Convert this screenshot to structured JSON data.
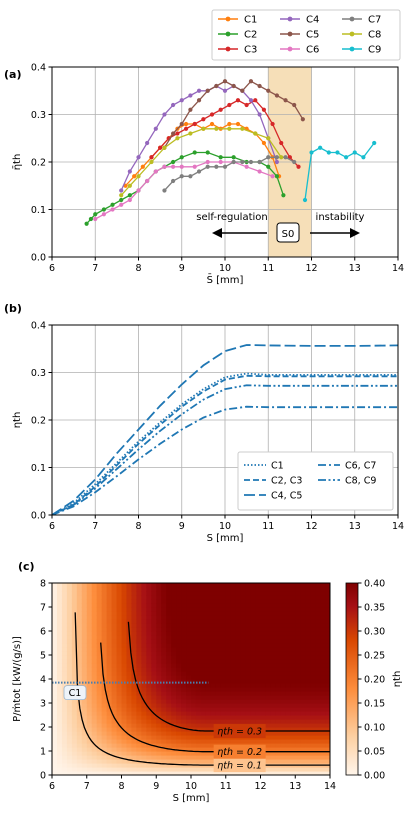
{
  "legend": {
    "entries": [
      {
        "name": "C1",
        "color": "#ff7f0e"
      },
      {
        "name": "C2",
        "color": "#2ca02c"
      },
      {
        "name": "C3",
        "color": "#d62728"
      },
      {
        "name": "C4",
        "color": "#9467bd"
      },
      {
        "name": "C5",
        "color": "#8c564b"
      },
      {
        "name": "C6",
        "color": "#e377c2"
      },
      {
        "name": "C7",
        "color": "#7f7f7f"
      },
      {
        "name": "C8",
        "color": "#bcbd22"
      },
      {
        "name": "C9",
        "color": "#17becf"
      }
    ]
  },
  "chart_data": [
    {
      "panel": "(a)",
      "type": "line",
      "xlabel": "S̄ [mm]",
      "ylabel": "η̄th",
      "xlim": [
        6,
        14
      ],
      "ylim": [
        0.0,
        0.4
      ],
      "xticks": [
        "6",
        "7",
        "8",
        "9",
        "10",
        "11",
        "12",
        "13",
        "14"
      ],
      "yticks": [
        "0.0",
        "0.1",
        "0.2",
        "0.3",
        "0.4"
      ],
      "grid": true,
      "legend_position": "top-right, above plot",
      "shaded_region": {
        "x": [
          11,
          12
        ],
        "label": "S0",
        "color": "#f6dfb8"
      },
      "annotations": [
        {
          "text": "self-regulation",
          "arrow": "left",
          "x_from": 11,
          "x_to": 8.6,
          "y": 0.055
        },
        {
          "text": "instability",
          "arrow": "right",
          "x_from": 12,
          "x_to": 13.2,
          "y": 0.055
        }
      ],
      "series": [
        {
          "name": "C1",
          "color": "#ff7f0e",
          "x": [
            7.7,
            7.9,
            8.1,
            8.3,
            8.5,
            8.7,
            8.9,
            9.1,
            9.3,
            9.5,
            9.7,
            9.9,
            10.1,
            10.3,
            10.5,
            10.7,
            10.9,
            11.1,
            11.25
          ],
          "y": [
            0.15,
            0.17,
            0.19,
            0.21,
            0.23,
            0.25,
            0.27,
            0.28,
            0.28,
            0.27,
            0.28,
            0.27,
            0.28,
            0.28,
            0.27,
            0.26,
            0.24,
            0.21,
            0.17
          ]
        },
        {
          "name": "C2",
          "color": "#2ca02c",
          "x": [
            6.8,
            6.9,
            7.0,
            7.2,
            7.4,
            7.6,
            7.8,
            8.0,
            8.2,
            8.4,
            8.6,
            8.8,
            9.0,
            9.3,
            9.6,
            9.9,
            10.2,
            10.5,
            10.8,
            11.0,
            11.2,
            11.35
          ],
          "y": [
            0.07,
            0.08,
            0.09,
            0.1,
            0.11,
            0.12,
            0.13,
            0.14,
            0.16,
            0.18,
            0.19,
            0.2,
            0.21,
            0.22,
            0.22,
            0.21,
            0.21,
            0.2,
            0.2,
            0.19,
            0.17,
            0.13
          ]
        },
        {
          "name": "C3",
          "color": "#d62728",
          "x": [
            8.3,
            8.5,
            8.7,
            8.9,
            9.1,
            9.3,
            9.5,
            9.7,
            9.9,
            10.1,
            10.3,
            10.5,
            10.7,
            10.9,
            11.1,
            11.3,
            11.5,
            11.7
          ],
          "y": [
            0.21,
            0.23,
            0.25,
            0.26,
            0.27,
            0.28,
            0.29,
            0.3,
            0.31,
            0.32,
            0.33,
            0.32,
            0.33,
            0.31,
            0.28,
            0.24,
            0.21,
            0.19
          ]
        },
        {
          "name": "C4",
          "color": "#9467bd",
          "x": [
            7.6,
            7.8,
            8.0,
            8.2,
            8.4,
            8.6,
            8.8,
            9.0,
            9.2,
            9.4,
            9.6,
            9.8,
            10.0,
            10.2,
            10.4,
            10.6,
            10.8,
            11.0,
            11.2
          ],
          "y": [
            0.14,
            0.18,
            0.21,
            0.24,
            0.27,
            0.3,
            0.32,
            0.33,
            0.34,
            0.35,
            0.35,
            0.36,
            0.35,
            0.36,
            0.35,
            0.33,
            0.3,
            0.25,
            0.2
          ]
        },
        {
          "name": "C5",
          "color": "#8c564b",
          "x": [
            8.6,
            8.8,
            9.0,
            9.2,
            9.4,
            9.6,
            9.8,
            10.0,
            10.2,
            10.4,
            10.6,
            10.8,
            11.0,
            11.2,
            11.4,
            11.6,
            11.8
          ],
          "y": [
            0.23,
            0.26,
            0.28,
            0.31,
            0.33,
            0.35,
            0.36,
            0.37,
            0.36,
            0.35,
            0.37,
            0.36,
            0.35,
            0.34,
            0.33,
            0.32,
            0.29
          ]
        },
        {
          "name": "C6",
          "color": "#e377c2",
          "x": [
            7.0,
            7.2,
            7.4,
            7.6,
            7.8,
            8.0,
            8.2,
            8.4,
            8.6,
            8.8,
            9.0,
            9.3,
            9.6,
            9.9,
            10.2,
            10.5,
            10.8,
            11.1
          ],
          "y": [
            0.08,
            0.09,
            0.1,
            0.11,
            0.12,
            0.14,
            0.16,
            0.18,
            0.19,
            0.19,
            0.19,
            0.19,
            0.2,
            0.2,
            0.2,
            0.19,
            0.18,
            0.17
          ]
        },
        {
          "name": "C7",
          "color": "#7f7f7f",
          "x": [
            8.6,
            8.8,
            9.0,
            9.2,
            9.4,
            9.6,
            9.8,
            10.0,
            10.2,
            10.4,
            10.6,
            10.8,
            11.0,
            11.2,
            11.4,
            11.6
          ],
          "y": [
            0.14,
            0.16,
            0.17,
            0.17,
            0.18,
            0.19,
            0.19,
            0.19,
            0.2,
            0.2,
            0.2,
            0.2,
            0.21,
            0.21,
            0.21,
            0.2
          ]
        },
        {
          "name": "C8",
          "color": "#bcbd22",
          "x": [
            7.6,
            7.8,
            8.0,
            8.3,
            8.6,
            8.9,
            9.2,
            9.5,
            9.8,
            10.1,
            10.4,
            10.7,
            11.0,
            11.3
          ],
          "y": [
            0.13,
            0.15,
            0.17,
            0.2,
            0.23,
            0.25,
            0.26,
            0.27,
            0.27,
            0.27,
            0.27,
            0.26,
            0.25,
            0.21
          ]
        },
        {
          "name": "C9",
          "color": "#17becf",
          "x": [
            11.85,
            12.0,
            12.2,
            12.4,
            12.6,
            12.8,
            13.0,
            13.2,
            13.45
          ],
          "y": [
            0.12,
            0.22,
            0.23,
            0.22,
            0.22,
            0.21,
            0.22,
            0.21,
            0.24
          ]
        }
      ]
    },
    {
      "panel": "(b)",
      "type": "line",
      "xlabel": "S [mm]",
      "ylabel": "ηth",
      "xlim": [
        6,
        14
      ],
      "ylim": [
        0.0,
        0.4
      ],
      "xticks": [
        "6",
        "7",
        "8",
        "9",
        "10",
        "11",
        "12",
        "13",
        "14"
      ],
      "yticks": [
        "0.0",
        "0.1",
        "0.2",
        "0.3",
        "0.4"
      ],
      "grid": true,
      "legend_position": "lower right",
      "color": "#1f77b4",
      "series": [
        {
          "name": "C1",
          "dash": "dotted",
          "x": [
            6,
            6.5,
            7,
            7.5,
            8,
            8.5,
            9,
            9.5,
            10,
            10.5,
            11,
            12,
            13,
            14
          ],
          "y": [
            0,
            0.025,
            0.065,
            0.11,
            0.155,
            0.195,
            0.233,
            0.265,
            0.29,
            0.298,
            0.295,
            0.295,
            0.295,
            0.295
          ]
        },
        {
          "name": "C2, C3",
          "dash": "dashed",
          "x": [
            6,
            6.5,
            7,
            7.5,
            8,
            8.5,
            9,
            9.5,
            10,
            10.5,
            11,
            12,
            13,
            14
          ],
          "y": [
            0,
            0.022,
            0.06,
            0.105,
            0.15,
            0.19,
            0.228,
            0.26,
            0.285,
            0.293,
            0.292,
            0.292,
            0.292,
            0.292
          ]
        },
        {
          "name": "C4, C5",
          "dash": "longdash",
          "x": [
            6,
            6.5,
            7,
            7.5,
            8,
            8.5,
            9,
            9.5,
            10,
            10.5,
            11,
            12,
            13,
            14
          ],
          "y": [
            0,
            0.03,
            0.075,
            0.13,
            0.18,
            0.23,
            0.275,
            0.315,
            0.345,
            0.358,
            0.357,
            0.356,
            0.356,
            0.357
          ]
        },
        {
          "name": "C6, C7",
          "dash": "dashdot",
          "x": [
            6,
            6.5,
            7,
            7.5,
            8,
            8.5,
            9,
            9.5,
            10,
            10.5,
            11,
            12,
            13,
            14
          ],
          "y": [
            0,
            0.018,
            0.048,
            0.082,
            0.117,
            0.15,
            0.18,
            0.205,
            0.222,
            0.228,
            0.227,
            0.227,
            0.227,
            0.227
          ]
        },
        {
          "name": "C8, C9",
          "dash": "dashdotdot",
          "x": [
            6,
            6.5,
            7,
            7.5,
            8,
            8.5,
            9,
            9.5,
            10,
            10.5,
            11,
            12,
            13,
            14
          ],
          "y": [
            0,
            0.021,
            0.056,
            0.097,
            0.138,
            0.177,
            0.212,
            0.243,
            0.265,
            0.273,
            0.272,
            0.272,
            0.272,
            0.272
          ]
        }
      ]
    },
    {
      "panel": "(c)",
      "type": "heatmap",
      "xlabel": "S [mm]",
      "ylabel": "P/ṁtot [kW/(g/s)]",
      "xlim": [
        6,
        14
      ],
      "ylim": [
        0,
        8
      ],
      "xticks": [
        "6",
        "7",
        "8",
        "9",
        "10",
        "11",
        "12",
        "13",
        "14"
      ],
      "yticks": [
        "0",
        "1",
        "2",
        "3",
        "4",
        "5",
        "6",
        "7",
        "8"
      ],
      "colorbar": {
        "label": "ηth",
        "min": 0.0,
        "max": 0.4,
        "ticks": [
          "0.00",
          "0.05",
          "0.10",
          "0.15",
          "0.20",
          "0.25",
          "0.30",
          "0.35",
          "0.40"
        ],
        "colors": [
          "#fff5eb",
          "#fdd0a2",
          "#fd8d3c",
          "#d94801",
          "#a50f15",
          "#7f0000"
        ]
      },
      "contours": [
        {
          "level": 0.1,
          "label": "ηth = 0.1"
        },
        {
          "level": 0.2,
          "label": "ηth = 0.2"
        },
        {
          "level": 0.3,
          "label": "ηth = 0.3"
        }
      ],
      "case_line": {
        "name": "C1",
        "y": 3.85,
        "color": "#4a7fb0"
      }
    }
  ]
}
